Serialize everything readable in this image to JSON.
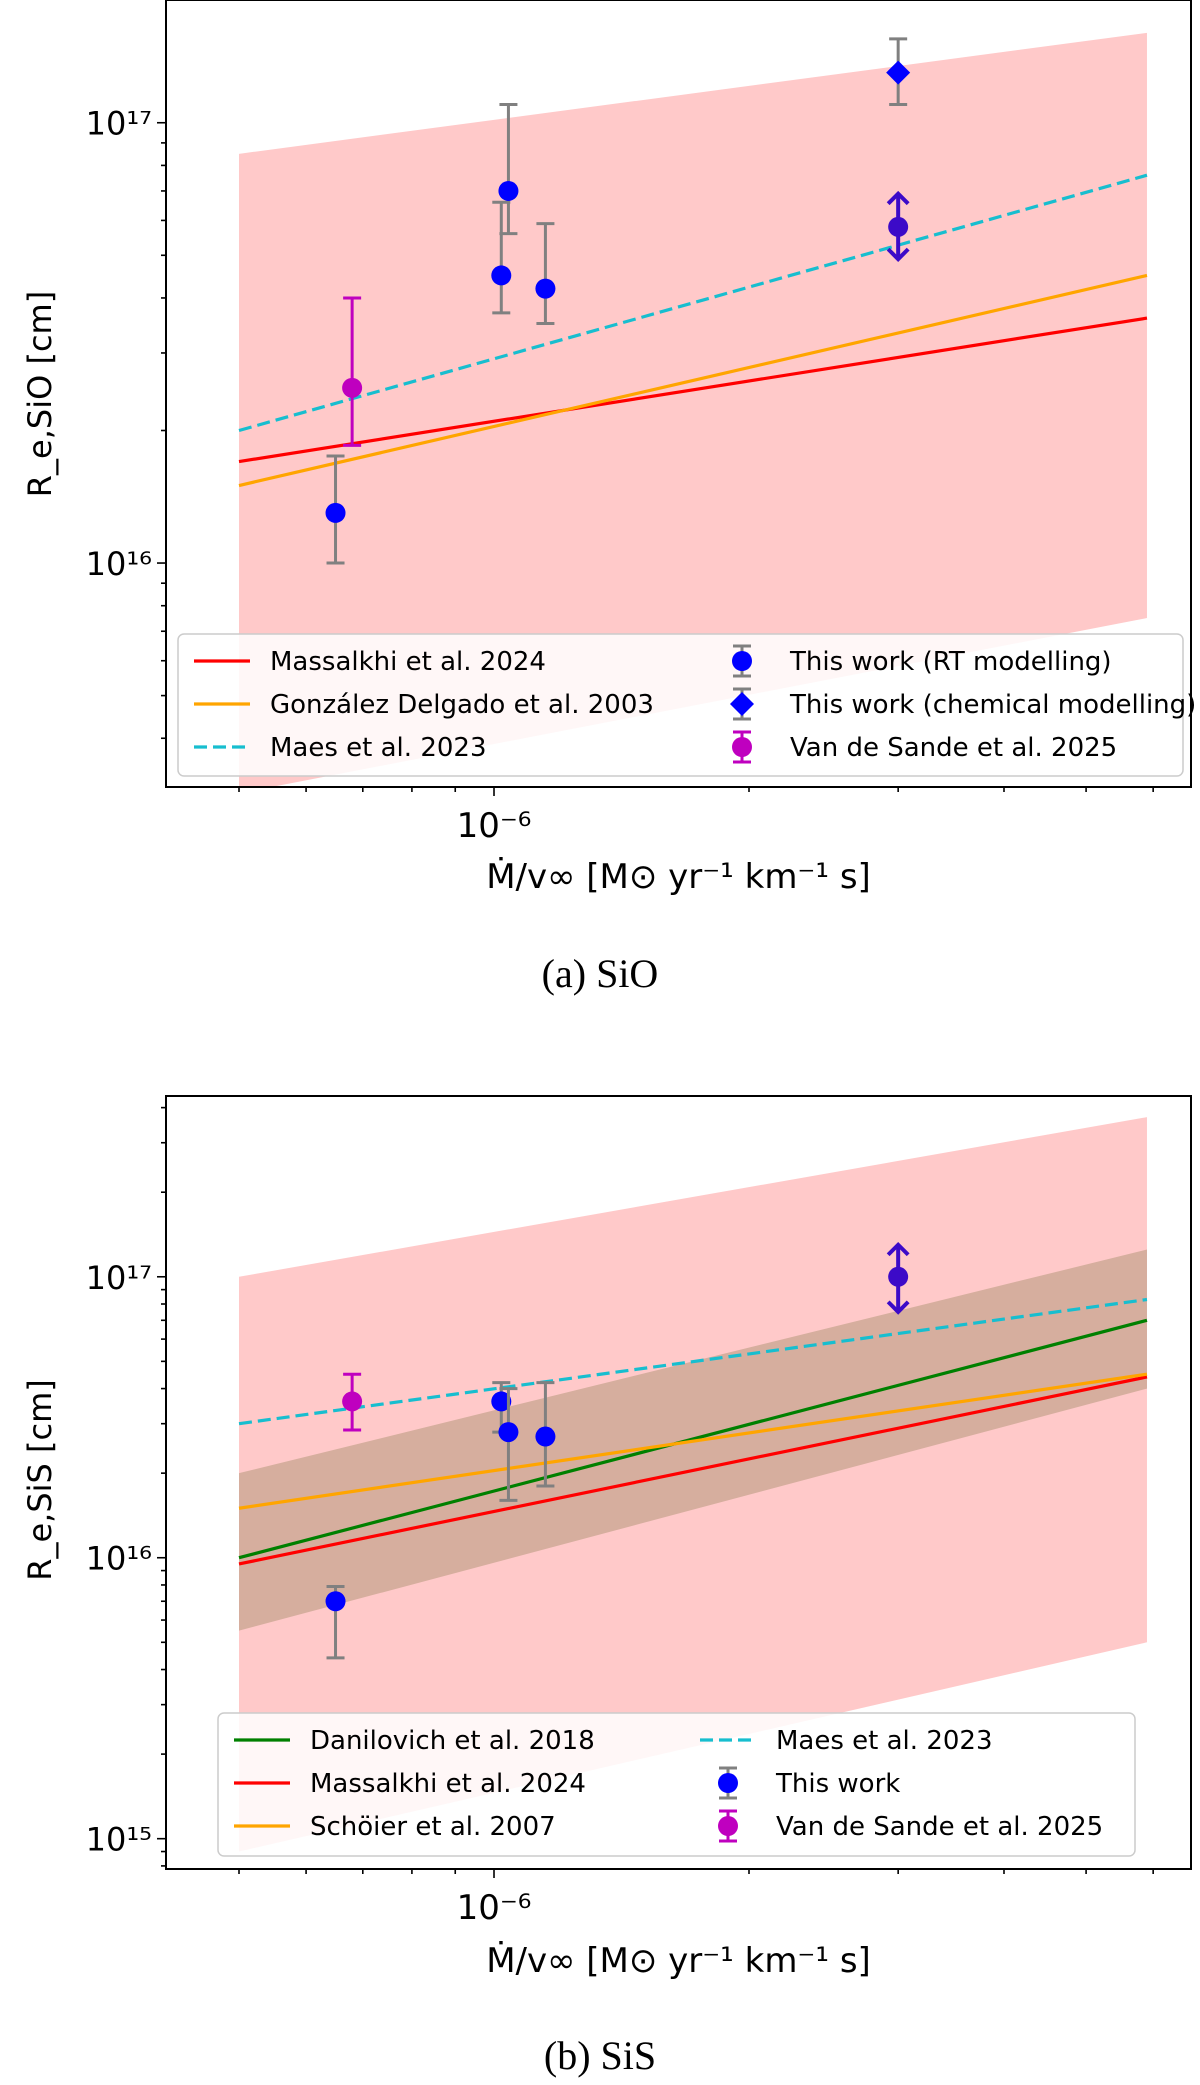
{
  "chart_data": [
    {
      "type": "scatter",
      "caption": "(a) SiO",
      "xscale": "log",
      "yscale": "log",
      "xlabel": "Ṁ/v∞ [M⊙ yr⁻¹ km⁻¹ s]",
      "ylabel": "R_e,SiO [cm]",
      "xlim": [
        4.1e-07,
        6.65e-06
      ],
      "ylim": [
        3100000000000000.0,
        1.9e+17
      ],
      "x_tick_labels": [
        {
          "value": 1e-06,
          "label": "10⁻⁶"
        }
      ],
      "y_tick_labels": [
        {
          "value": 1e+16,
          "label": "10¹⁶"
        },
        {
          "value": 1e+17,
          "label": "10¹⁷"
        }
      ],
      "band": {
        "color": "#ffc9c9",
        "x": [
          5e-07,
          5.9e-06
        ],
        "lower": [
          3000000000000000.0,
          7500000000000000.0
        ],
        "upper": [
          8.5e+16,
          1.6e+17
        ]
      },
      "series": [
        {
          "name": "Massalkhi et al. 2024",
          "kind": "line",
          "style": "solid",
          "color": "#ff0000",
          "x": [
            5e-07,
            5.9e-06
          ],
          "y": [
            1.7e+16,
            3.6e+16
          ]
        },
        {
          "name": "González Delgado et al. 2003",
          "kind": "line",
          "style": "solid",
          "color": "#ffa500",
          "x": [
            5e-07,
            5.9e-06
          ],
          "y": [
            1.5e+16,
            4.5e+16
          ]
        },
        {
          "name": "Maes et al. 2023",
          "kind": "line",
          "style": "dashed",
          "color": "#17becf",
          "x": [
            5e-07,
            5.9e-06
          ],
          "y": [
            2e+16,
            7.6e+16
          ]
        },
        {
          "name": "This work (RT modelling)",
          "kind": "points",
          "marker": "circle",
          "color": "#0000ff",
          "err_color": "#808080",
          "points": [
            {
              "x": 6.5e-07,
              "y": 1.3e+16,
              "lo": 1e+16,
              "hi": 1.75e+16
            },
            {
              "x": 1.02e-06,
              "y": 4.5e+16,
              "lo": 3.7e+16,
              "hi": 6.6e+16
            },
            {
              "x": 1.04e-06,
              "y": 7e+16,
              "lo": 5.6e+16,
              "hi": 1.1e+17
            },
            {
              "x": 1.15e-06,
              "y": 4.2e+16,
              "lo": 3.5e+16,
              "hi": 5.9e+16
            }
          ]
        },
        {
          "name": "This work (chemical modelling)",
          "kind": "points",
          "marker": "diamond",
          "color": "#0000ff",
          "err_color": "#808080",
          "points": [
            {
              "x": 3e-06,
              "y": 1.3e+17,
              "lo": 1.1e+17,
              "hi": 1.55e+17
            }
          ]
        },
        {
          "name": "Van de Sande et al. 2025",
          "kind": "points",
          "marker": "circle",
          "color": "#bf00bf",
          "err_color": "#bf00bf",
          "points": [
            {
              "x": 6.8e-07,
              "y": 2.5e+16,
              "lo": 1.85e+16,
              "hi": 4e+16
            }
          ]
        },
        {
          "kind": "arrow",
          "color": "#3c0ac8",
          "points": [
            {
              "x": 3e-06,
              "y": 5.8e+16,
              "lo": 4.9e+16,
              "hi": 6.9e+16
            }
          ]
        }
      ],
      "legend": {
        "placement": "lower-center",
        "columns": [
          [
            "Massalkhi et al. 2024",
            "González Delgado et al. 2003",
            "Maes et al. 2023"
          ],
          [
            "This work (RT modelling)",
            "This work (chemical modelling)",
            "Van de Sande et al. 2025"
          ]
        ]
      }
    },
    {
      "type": "scatter",
      "caption": "(b) SiS",
      "xscale": "log",
      "yscale": "log",
      "xlabel": "Ṁ/v∞ [M⊙ yr⁻¹ km⁻¹ s]",
      "ylabel": "R_e,SiS [cm]",
      "xlim": [
        4.1e-07,
        6.65e-06
      ],
      "ylim": [
        780000000000000.0,
        4.4e+17
      ],
      "x_tick_labels": [
        {
          "value": 1e-06,
          "label": "10⁻⁶"
        }
      ],
      "y_tick_labels": [
        {
          "value": 1000000000000000.0,
          "label": "10¹⁵"
        },
        {
          "value": 1e+16,
          "label": "10¹⁶"
        },
        {
          "value": 1e+17,
          "label": "10¹⁷"
        }
      ],
      "bands": [
        {
          "color": "#ffc9c9",
          "x": [
            5e-07,
            5.9e-06
          ],
          "lower": [
            900000000000000.0,
            5000000000000000.0
          ],
          "upper": [
            1e+17,
            3.7e+17
          ]
        },
        {
          "color": "#d6ae9e",
          "x": [
            5e-07,
            5.9e-06
          ],
          "lower": [
            5500000000000000.0,
            4e+16
          ],
          "upper": [
            2e+16,
            1.25e+17
          ]
        }
      ],
      "series": [
        {
          "name": "Danilovich et al. 2018",
          "kind": "line",
          "style": "solid",
          "color": "#008000",
          "x": [
            5e-07,
            5.9e-06
          ],
          "y": [
            1e+16,
            7e+16
          ]
        },
        {
          "name": "Massalkhi et al. 2024",
          "kind": "line",
          "style": "solid",
          "color": "#ff0000",
          "x": [
            5e-07,
            5.9e-06
          ],
          "y": [
            9500000000000000.0,
            4.4e+16
          ]
        },
        {
          "name": "Schöier et al. 2007",
          "kind": "line",
          "style": "solid",
          "color": "#ffa500",
          "x": [
            5e-07,
            5.9e-06
          ],
          "y": [
            1.5e+16,
            4.5e+16
          ]
        },
        {
          "name": "Maes et al. 2023",
          "kind": "line",
          "style": "dashed",
          "color": "#17becf",
          "x": [
            5e-07,
            5.9e-06
          ],
          "y": [
            3e+16,
            8.3e+16
          ]
        },
        {
          "name": "This work",
          "kind": "points",
          "marker": "circle",
          "color": "#0000ff",
          "err_color": "#808080",
          "points": [
            {
              "x": 6.5e-07,
              "y": 7000000000000000.0,
              "lo": 4400000000000000.0,
              "hi": 7900000000000000.0
            },
            {
              "x": 1.02e-06,
              "y": 3.6e+16,
              "lo": 2.8e+16,
              "hi": 4.2e+16
            },
            {
              "x": 1.04e-06,
              "y": 2.8e+16,
              "lo": 1.6e+16,
              "hi": 4e+16
            },
            {
              "x": 1.15e-06,
              "y": 2.7e+16,
              "lo": 1.8e+16,
              "hi": 4.2e+16
            }
          ]
        },
        {
          "name": "Van de Sande et al. 2025",
          "kind": "points",
          "marker": "circle",
          "color": "#bf00bf",
          "err_color": "#bf00bf",
          "points": [
            {
              "x": 6.8e-07,
              "y": 3.6e+16,
              "lo": 2.85e+16,
              "hi": 4.5e+16
            }
          ]
        },
        {
          "kind": "arrow",
          "color": "#3c0ac8",
          "points": [
            {
              "x": 3e-06,
              "y": 1e+17,
              "lo": 7.5e+16,
              "hi": 1.3e+17
            }
          ]
        }
      ],
      "legend": {
        "placement": "lower-center",
        "columns": [
          [
            "Danilovich et al. 2018",
            "Massalkhi et al. 2024",
            "Schöier et al. 2007"
          ],
          [
            "Maes et al. 2023",
            "This work",
            "Van de Sande et al. 2025"
          ]
        ]
      }
    }
  ]
}
